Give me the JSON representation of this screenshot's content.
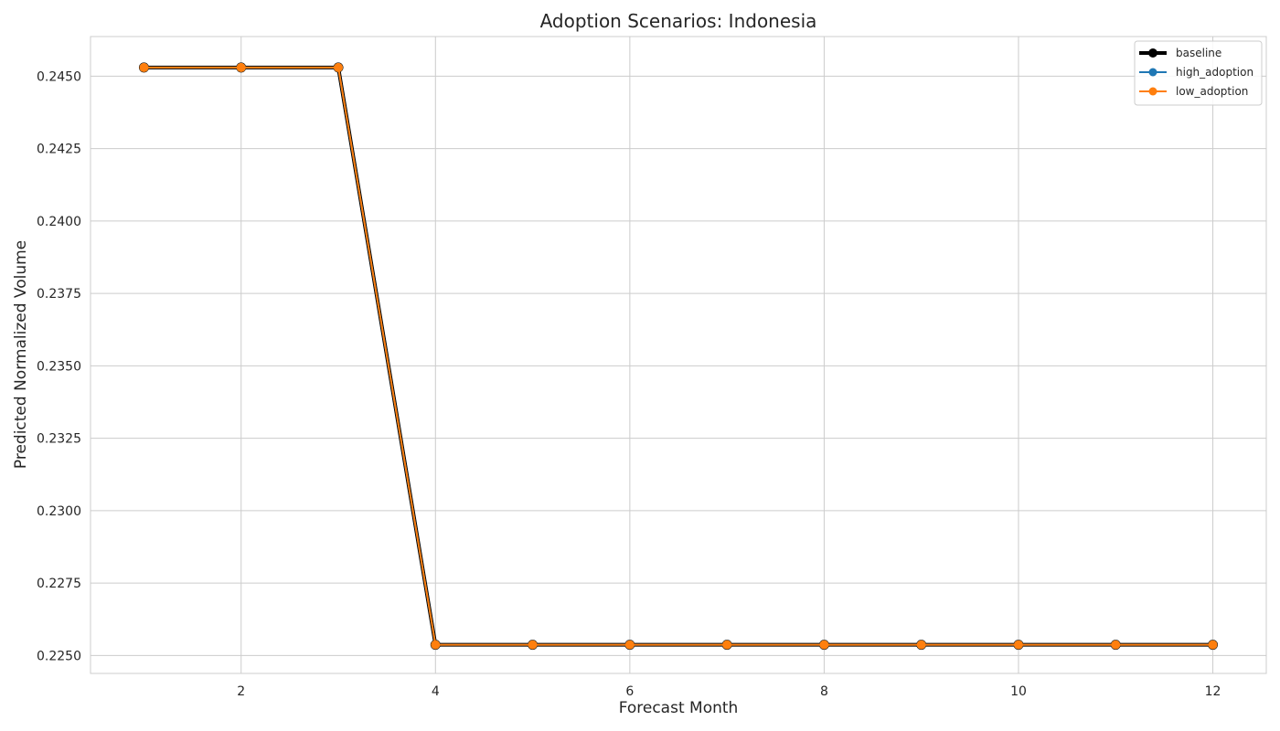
{
  "chart_data": {
    "type": "line",
    "title": "Adoption Scenarios: Indonesia",
    "xlabel": "Forecast Month",
    "ylabel": "Predicted Normalized Volume",
    "x": [
      1,
      2,
      3,
      4,
      5,
      6,
      7,
      8,
      9,
      10,
      11,
      12
    ],
    "xlim": [
      0.45,
      12.55
    ],
    "ylim": [
      0.22438,
      0.24637
    ],
    "xticks": [
      2,
      4,
      6,
      8,
      10,
      12
    ],
    "yticks": [
      0.225,
      0.2275,
      0.23,
      0.2325,
      0.235,
      0.2375,
      0.24,
      0.2425,
      0.245
    ],
    "ytick_labels": [
      "0.2250",
      "0.2275",
      "0.2300",
      "0.2325",
      "0.2350",
      "0.2375",
      "0.2400",
      "0.2425",
      "0.2450"
    ],
    "grid": true,
    "legend_position": "top-right",
    "series": [
      {
        "name": "baseline",
        "color": "#000000",
        "values": [
          0.2453,
          0.2453,
          0.2453,
          0.22537,
          0.22537,
          0.22537,
          0.22537,
          0.22537,
          0.22537,
          0.22537,
          0.22537,
          0.22537
        ]
      },
      {
        "name": "high_adoption",
        "color": "#1f77b4",
        "values": [
          0.2453,
          0.2453,
          0.2453,
          0.22537,
          0.22537,
          0.22537,
          0.22537,
          0.22537,
          0.22537,
          0.22537,
          0.22537,
          0.22537
        ]
      },
      {
        "name": "low_adoption",
        "color": "#ff7f0e",
        "values": [
          0.2453,
          0.2453,
          0.2453,
          0.22537,
          0.22537,
          0.22537,
          0.22537,
          0.22537,
          0.22537,
          0.22537,
          0.22537,
          0.22537
        ]
      }
    ]
  }
}
